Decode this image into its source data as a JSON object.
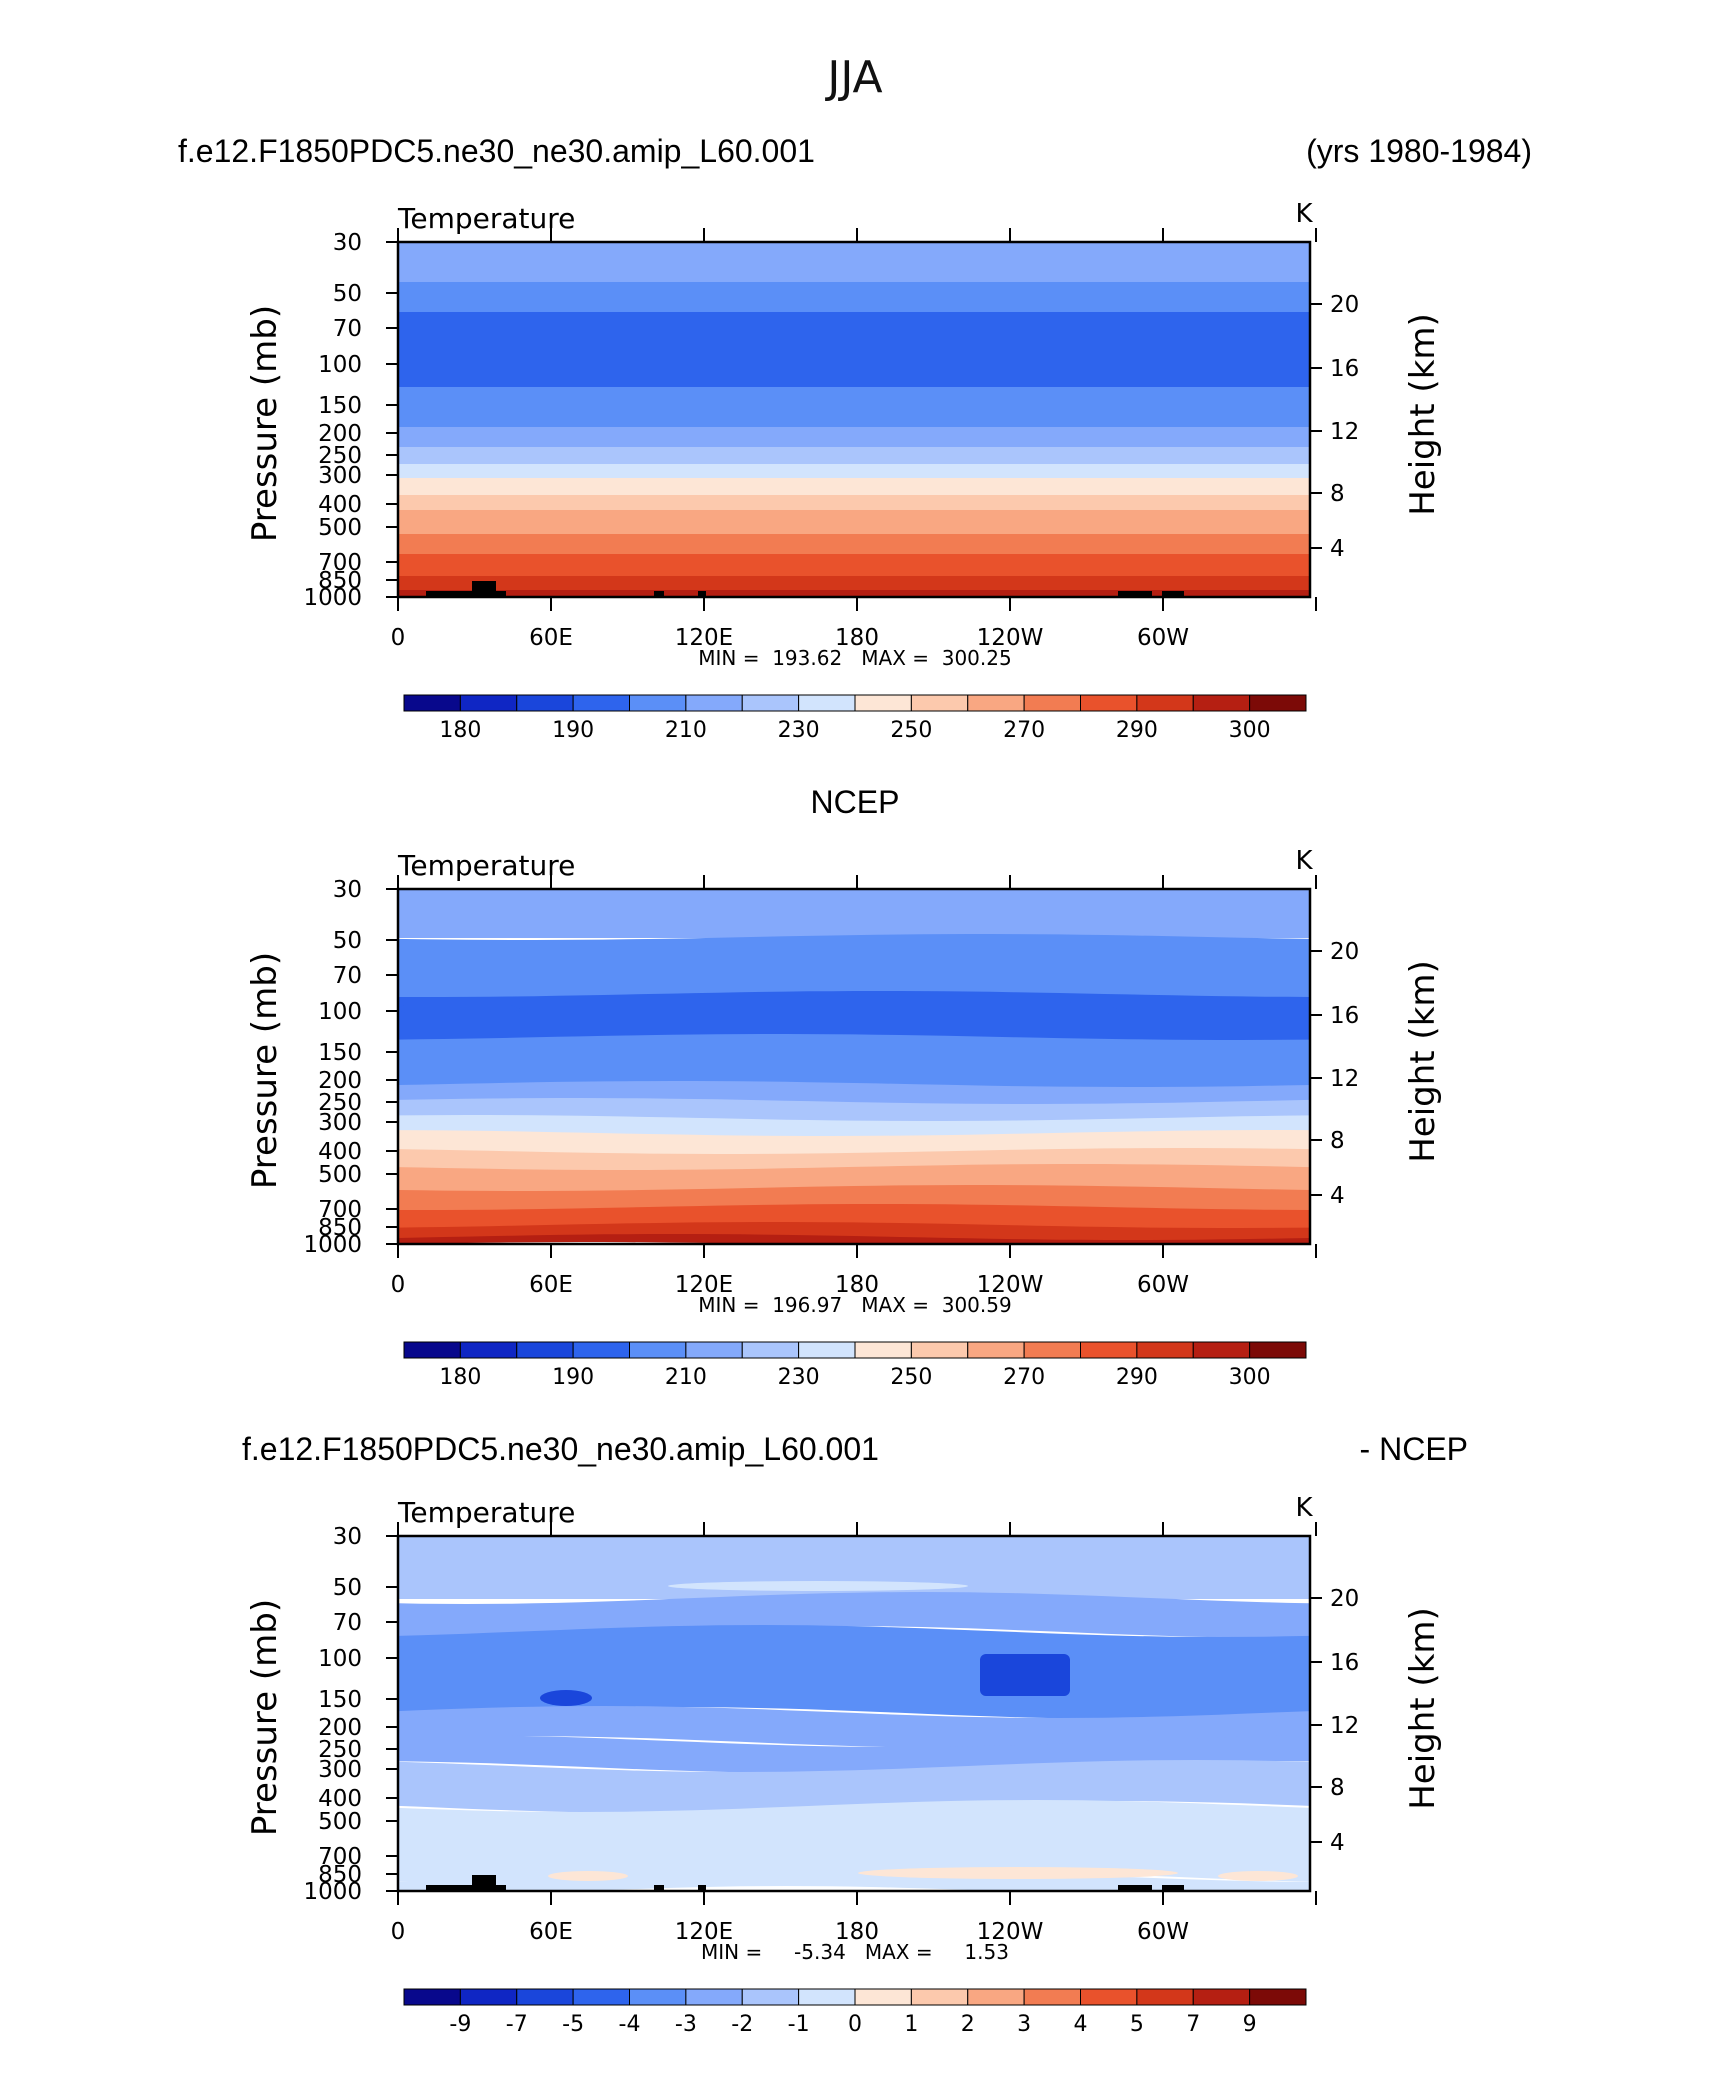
{
  "figure": {
    "title": "JJA",
    "panel1_left": "f.e12.F1850PDC5.ne30_ne30.amip_L60.001",
    "panel1_right": "(yrs 1980-1984)",
    "panel2_title": "NCEP",
    "panel3_left": "f.e12.F1850PDC5.ne30_ne30.amip_L60.001",
    "panel3_right": "- NCEP"
  },
  "colors": {
    "temp_palette": [
      "#08088c",
      "#0f26c4",
      "#1a46db",
      "#2e64ed",
      "#5b8ff7",
      "#84a9fb",
      "#aac5fc",
      "#d2e4fd",
      "#fde6d6",
      "#fcc9ad",
      "#f9a782",
      "#f27c52",
      "#e9522c",
      "#d3371a",
      "#b51f12",
      "#7c0a07"
    ],
    "diff_palette": [
      "#08088c",
      "#0f26c4",
      "#1a46db",
      "#2e64ed",
      "#5b8ff7",
      "#84a9fb",
      "#aac5fc",
      "#d2e4fd",
      "#fde6d6",
      "#fcc9ad",
      "#f9a782",
      "#f27c52",
      "#e9522c",
      "#d3371a",
      "#b51f12",
      "#7c0a07"
    ]
  },
  "chart_data": [
    {
      "type": "heatmap",
      "panel": "model",
      "title": "Temperature",
      "units": "K",
      "ylabel": "Pressure  (mb)",
      "ylabel_right": "Height  (km)",
      "x_ticks": [
        "0",
        "60E",
        "120E",
        "180",
        "120W",
        "60W"
      ],
      "y_ticks": [
        "30",
        "50",
        "70",
        "100",
        "150",
        "200",
        "250",
        "300",
        "400",
        "500",
        "700",
        "850",
        "1000"
      ],
      "y_ticks_right": [
        "20",
        "16",
        "12",
        "8",
        "4"
      ],
      "stats": {
        "min": "193.62",
        "max": "300.25"
      },
      "stats_text": "MIN =  193.62   MAX =  300.25",
      "colorbar_labels": [
        "180",
        "190",
        "210",
        "230",
        "250",
        "270",
        "290",
        "300"
      ],
      "layers_top_to_bottom": [
        {
          "level_mb": 30,
          "value_K": 215
        },
        {
          "level_mb": 50,
          "value_K": 205
        },
        {
          "level_mb": 70,
          "value_K": 200
        },
        {
          "level_mb": 100,
          "value_K": 195
        },
        {
          "level_mb": 150,
          "value_K": 205
        },
        {
          "level_mb": 200,
          "value_K": 215
        },
        {
          "level_mb": 250,
          "value_K": 225
        },
        {
          "level_mb": 300,
          "value_K": 240
        },
        {
          "level_mb": 400,
          "value_K": 255
        },
        {
          "level_mb": 500,
          "value_K": 265
        },
        {
          "level_mb": 700,
          "value_K": 280
        },
        {
          "level_mb": 850,
          "value_K": 290
        },
        {
          "level_mb": 1000,
          "value_K": 295
        }
      ]
    },
    {
      "type": "heatmap",
      "panel": "NCEP",
      "title": "Temperature",
      "units": "K",
      "ylabel": "Pressure  (mb)",
      "ylabel_right": "Height  (km)",
      "x_ticks": [
        "0",
        "60E",
        "120E",
        "180",
        "120W",
        "60W"
      ],
      "y_ticks": [
        "30",
        "50",
        "70",
        "100",
        "150",
        "200",
        "250",
        "300",
        "400",
        "500",
        "700",
        "850",
        "1000"
      ],
      "y_ticks_right": [
        "20",
        "16",
        "12",
        "8",
        "4"
      ],
      "stats": {
        "min": "196.97",
        "max": "300.59"
      },
      "stats_text": "MIN =  196.97   MAX =  300.59",
      "colorbar_labels": [
        "180",
        "190",
        "210",
        "230",
        "250",
        "270",
        "290",
        "300"
      ]
    },
    {
      "type": "heatmap",
      "panel": "difference",
      "title": "Temperature",
      "units": "K",
      "ylabel": "Pressure  (mb)",
      "ylabel_right": "Height  (km)",
      "x_ticks": [
        "0",
        "60E",
        "120E",
        "180",
        "120W",
        "60W"
      ],
      "y_ticks": [
        "30",
        "50",
        "70",
        "100",
        "150",
        "200",
        "250",
        "300",
        "400",
        "500",
        "700",
        "850",
        "1000"
      ],
      "y_ticks_right": [
        "20",
        "16",
        "12",
        "8",
        "4"
      ],
      "stats": {
        "min": "-5.34",
        "max": "1.53"
      },
      "stats_text": "MIN =     -5.34   MAX =     1.53",
      "colorbar_labels": [
        "-9",
        "-7",
        "-5",
        "-4",
        "-3",
        "-2",
        "-1",
        "0",
        "1",
        "2",
        "3",
        "4",
        "5",
        "7",
        "9"
      ]
    }
  ]
}
